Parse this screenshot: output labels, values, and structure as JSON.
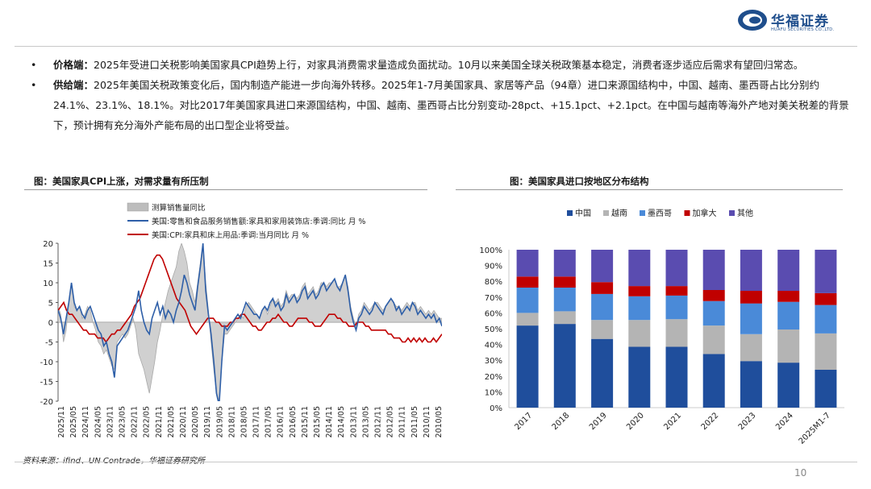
{
  "logo": {
    "name": "华福证券",
    "sub": "HUAFU SECURITIES CO.,LTD."
  },
  "bullets": [
    {
      "marker": "•",
      "label": "价格端：",
      "text": "2025年受进口关税影响美国家具CPI趋势上行，对家具消费需求量造成负面扰动。10月以来美国全球关税政策基本稳定，消费者逐步适应后需求有望回归常态。"
    },
    {
      "marker": "•",
      "label": "供给端：",
      "text": "2025年美国关税政策变化后，国内制造产能进一步向海外转移。2025年1-7月美国家具、家居等产品（94章）进口来源国结构中，中国、越南、墨西哥占比分别约24.1%、23.1%、18.1%。对比2017年美国家具进口来源国结构，中国、越南、墨西哥占比分别变动-28pct、+15.1pct、+2.1pct。在中国与越南等海外产地对美关税差的背景下，预计拥有充分海外产能布局的出口型企业将受益。"
    }
  ],
  "left_chart": {
    "title": "图：美国家具CPI上涨，对需求量有所压制"
  },
  "right_chart": {
    "title": "图：美国家具进口按地区分布结构"
  },
  "source": "资料来源：ifind、UN Contrade，华福证券研究所",
  "page_number": "10",
  "chart_data": [
    {
      "type": "line",
      "legend": [
        "测算销售量同比",
        "美国:零售和食品服务销售额:家具和家用装饰店:季调:同比 月 %",
        "美国:CPI:家具和床上用品:季调:当月同比 月 %"
      ],
      "colors": [
        "#bdbdbd",
        "#2e5fa8",
        "#c00000"
      ],
      "ylim": [
        -20,
        20
      ],
      "yticks": [
        "20",
        "15",
        "10",
        "5",
        "0",
        "-5",
        "-10",
        "-15",
        "-20"
      ],
      "xticks": [
        "2025/11",
        "2025/05",
        "2024/11",
        "2024/05",
        "2023/11",
        "2023/05",
        "2022/11",
        "2022/05",
        "2021/11",
        "2021/05",
        "2020/11",
        "2020/05",
        "2019/11",
        "2019/05",
        "2018/11",
        "2018/05",
        "2017/11",
        "2017/05",
        "2016/11",
        "2016/05",
        "2015/11",
        "2015/05",
        "2014/11",
        "2014/05",
        "2013/11",
        "2013/05",
        "2012/11",
        "2012/05",
        "2011/11",
        "2011/05",
        "2010/11",
        "2010/05"
      ],
      "series_blue": [
        3,
        1,
        -3,
        1,
        5,
        10,
        5,
        3,
        4,
        2,
        1,
        3,
        4,
        2,
        0,
        -2,
        -3,
        -6,
        -5,
        -8,
        -10,
        -14,
        -6,
        -5,
        -4,
        -3,
        -2,
        0,
        2,
        4,
        8,
        3,
        0,
        -2,
        -3,
        1,
        3,
        5,
        2,
        4,
        1,
        3,
        2,
        0,
        3,
        5,
        8,
        12,
        10,
        7,
        5,
        3,
        9,
        14,
        20,
        8,
        2,
        -3,
        -10,
        -18,
        -21,
        -10,
        -1,
        -2,
        -1,
        0,
        1,
        2,
        1,
        3,
        5,
        4,
        3,
        2,
        2,
        1,
        3,
        4,
        3,
        5,
        6,
        4,
        5,
        3,
        4,
        7,
        5,
        6,
        7,
        5,
        6,
        8,
        9,
        6,
        7,
        8,
        6,
        7,
        9,
        10,
        8,
        9,
        10,
        11,
        9,
        8,
        10,
        12,
        8,
        3,
        0,
        -2,
        1,
        2,
        4,
        3,
        2,
        3,
        5,
        4,
        3,
        2,
        4,
        5,
        6,
        5,
        3,
        4,
        2,
        3,
        4,
        3,
        5,
        4,
        2,
        3,
        2,
        1,
        2,
        1,
        2,
        0,
        1,
        -1
      ],
      "series_red": [
        3,
        4,
        5,
        3,
        2,
        2,
        1,
        0,
        -1,
        -2,
        -2,
        -3,
        -3,
        -3,
        -4,
        -4,
        -4,
        -5,
        -4,
        -3,
        -3,
        -2,
        -2,
        -1,
        0,
        1,
        2,
        4,
        5,
        6,
        8,
        10,
        12,
        14,
        16,
        17,
        17,
        16,
        14,
        12,
        10,
        8,
        6,
        5,
        4,
        3,
        1,
        -1,
        -2,
        -3,
        -2,
        -1,
        0,
        1,
        1,
        1,
        0,
        0,
        -1,
        -1,
        -1,
        0,
        0,
        1,
        1,
        2,
        2,
        1,
        0,
        -1,
        -1,
        -2,
        -2,
        -1,
        0,
        0,
        1,
        1,
        2,
        1,
        0,
        0,
        -1,
        -1,
        0,
        1,
        1,
        1,
        1,
        0,
        0,
        -1,
        -1,
        -1,
        0,
        1,
        2,
        2,
        2,
        1,
        1,
        0,
        0,
        -1,
        -1,
        -1,
        0,
        0,
        0,
        -1,
        -1,
        -2,
        -2,
        -2,
        -2,
        -2,
        -2,
        -3,
        -3,
        -4,
        -4,
        -4,
        -5,
        -5,
        -4,
        -5,
        -4,
        -5,
        -4,
        -5,
        -4,
        -5,
        -5,
        -4,
        -5,
        -4,
        -3
      ],
      "series_gray": [
        4,
        2,
        -5,
        -2,
        5,
        10,
        4,
        3,
        4,
        1,
        2,
        4,
        3,
        0,
        -2,
        -5,
        -6,
        -8,
        -7,
        -9,
        -11,
        -12,
        -5,
        -4,
        -3,
        -4,
        -3,
        -1,
        1,
        -2,
        -8,
        -10,
        -12,
        -15,
        -18,
        -14,
        -10,
        -5,
        -2,
        2,
        5,
        8,
        10,
        12,
        14,
        18,
        20,
        18,
        15,
        10,
        8,
        5,
        10,
        15,
        20,
        10,
        3,
        -5,
        -12,
        -18,
        -20,
        -10,
        -3,
        -3,
        -2,
        -1,
        0,
        1,
        2,
        1,
        4,
        5,
        4,
        3,
        2,
        1,
        3,
        4,
        2,
        4,
        6,
        5,
        6,
        4,
        5,
        8,
        6,
        7,
        7,
        6,
        7,
        9,
        10,
        7,
        8,
        9,
        7,
        8,
        10,
        10,
        9,
        10,
        10,
        11,
        9,
        9,
        10,
        12,
        9,
        4,
        1,
        -1,
        2,
        3,
        5,
        4,
        3,
        4,
        5,
        5,
        4,
        3,
        4,
        5,
        6,
        5,
        4,
        4,
        3,
        4,
        5,
        4,
        5,
        5,
        3,
        4,
        3,
        2,
        3,
        2,
        3,
        2,
        1,
        1
      ]
    },
    {
      "type": "bar",
      "stacked": true,
      "categories": [
        "2017",
        "2018",
        "2019",
        "2020",
        "2021",
        "2022",
        "2023",
        "2024",
        "2025M1-7"
      ],
      "ylim": [
        0,
        100
      ],
      "yticks": [
        "100%",
        "90%",
        "80%",
        "70%",
        "60%",
        "50%",
        "40%",
        "30%",
        "20%",
        "10%",
        "0%"
      ],
      "legend_position": "top",
      "series": [
        {
          "name": "中国",
          "color": "#1f4e9c",
          "values": [
            52,
            53,
            43.5,
            38.5,
            38.5,
            34,
            29.5,
            28.5,
            24
          ]
        },
        {
          "name": "越南",
          "color": "#b4b4b4",
          "values": [
            8,
            8,
            12,
            17,
            17.5,
            18,
            17,
            21,
            23
          ]
        },
        {
          "name": "墨西哥",
          "color": "#4a8ad8",
          "values": [
            16,
            15,
            16.5,
            15,
            15,
            15.5,
            19.5,
            17.5,
            18
          ]
        },
        {
          "name": "加拿大",
          "color": "#c00000",
          "values": [
            7,
            7,
            7.5,
            6.5,
            6,
            7,
            8,
            7,
            7.5
          ]
        },
        {
          "name": "其他",
          "color": "#5a4cb0",
          "values": [
            17,
            17,
            20.5,
            23,
            23,
            25.5,
            26,
            26,
            27.5
          ]
        }
      ]
    }
  ]
}
